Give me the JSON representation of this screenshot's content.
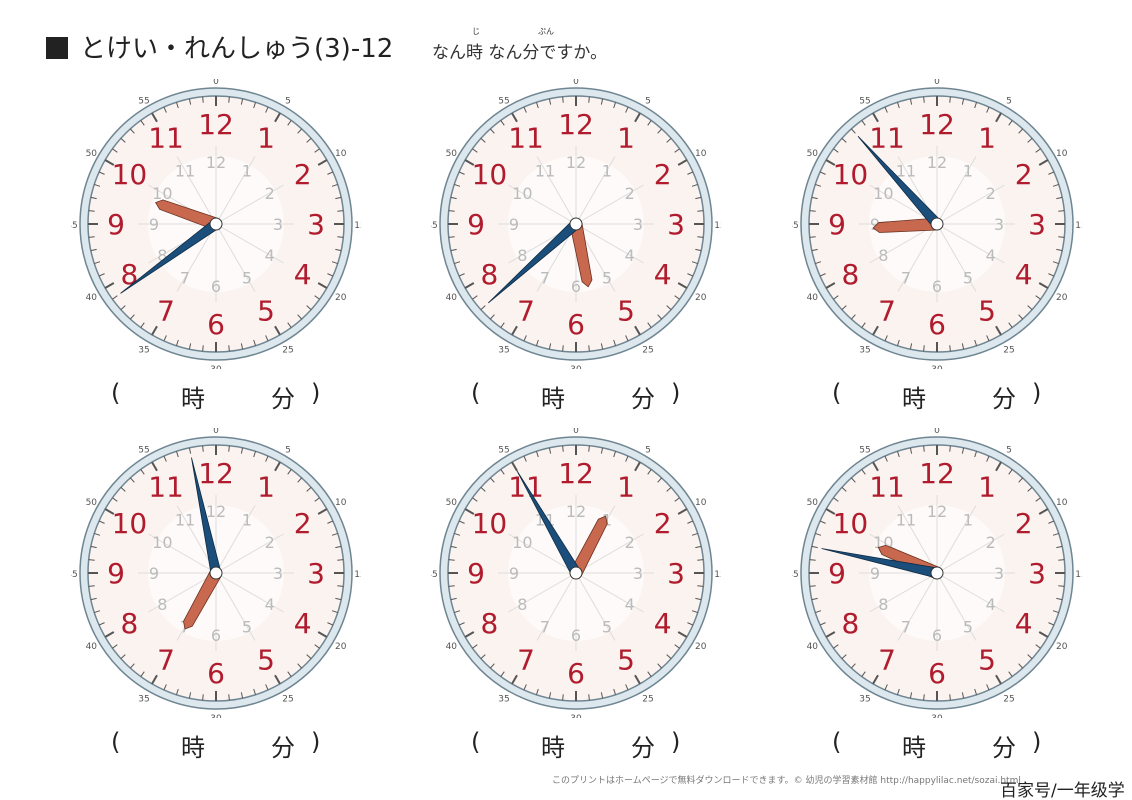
{
  "header": {
    "title": "とけい・れんしゅう(3)-12",
    "instruction": "なん時 なん分ですか。",
    "ruby_ji": "じ",
    "ruby_fun": "ぷん"
  },
  "answer_labels": {
    "open": "(",
    "hour": "時",
    "minute": "分",
    "close": ")"
  },
  "clocks": [
    {
      "hour": 9,
      "minute": 39
    },
    {
      "hour": 5,
      "minute": 38
    },
    {
      "hour": 8,
      "minute": 53
    },
    {
      "hour": 6,
      "minute": 58
    },
    {
      "hour": 12,
      "minute": 55
    },
    {
      "hour": 9,
      "minute": 47
    }
  ],
  "colors": {
    "hour_numbers": "#b01c2e",
    "hour_hand": "#c8694f",
    "minute_hand": "#1b4e7a",
    "rim": "#dce8ee",
    "face": "#fbf3ef"
  },
  "footer": {
    "notice": "このプリントはホームページで無料ダウンロードできます。© 幼児の学習素材館 http://happylilac.net/sozai.html",
    "watermark": "百家号/一年级学"
  }
}
